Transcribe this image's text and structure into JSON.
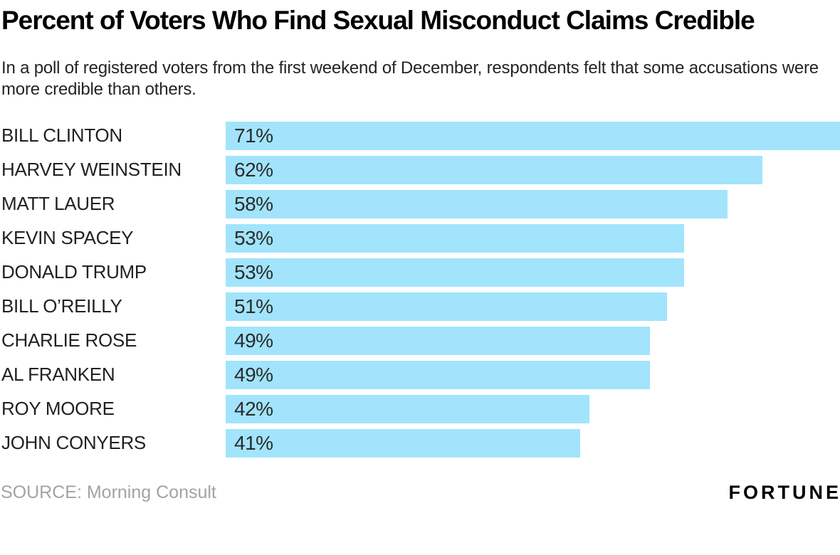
{
  "header": {
    "title": "Percent of Voters Who Find Sexual Misconduct Claims Credible",
    "subtitle": "In a poll of registered voters from the first weekend of December, respondents felt that some accusations were more credible than others."
  },
  "chart_data": {
    "type": "bar",
    "orientation": "horizontal",
    "categories": [
      "BILL CLINTON",
      "HARVEY WEINSTEIN",
      "MATT LAUER",
      "KEVIN SPACEY",
      "DONALD TRUMP",
      "BILL O’REILLY",
      "CHARLIE ROSE",
      "AL FRANKEN",
      "ROY MOORE",
      "JOHN CONYERS"
    ],
    "values": [
      71,
      62,
      58,
      53,
      53,
      51,
      49,
      49,
      42,
      41
    ],
    "value_suffix": "%",
    "xlim": [
      0,
      71
    ],
    "grid": false,
    "legend": false,
    "title": "Percent of Voters Who Find Sexual Misconduct Claims Credible",
    "xlabel": "",
    "ylabel": ""
  },
  "footer": {
    "source": "SOURCE: Morning Consult",
    "brand": "FORTUNE"
  },
  "colors": {
    "bar": "#a1e4fb",
    "text": "#231f20",
    "muted": "#a3a3a3"
  }
}
